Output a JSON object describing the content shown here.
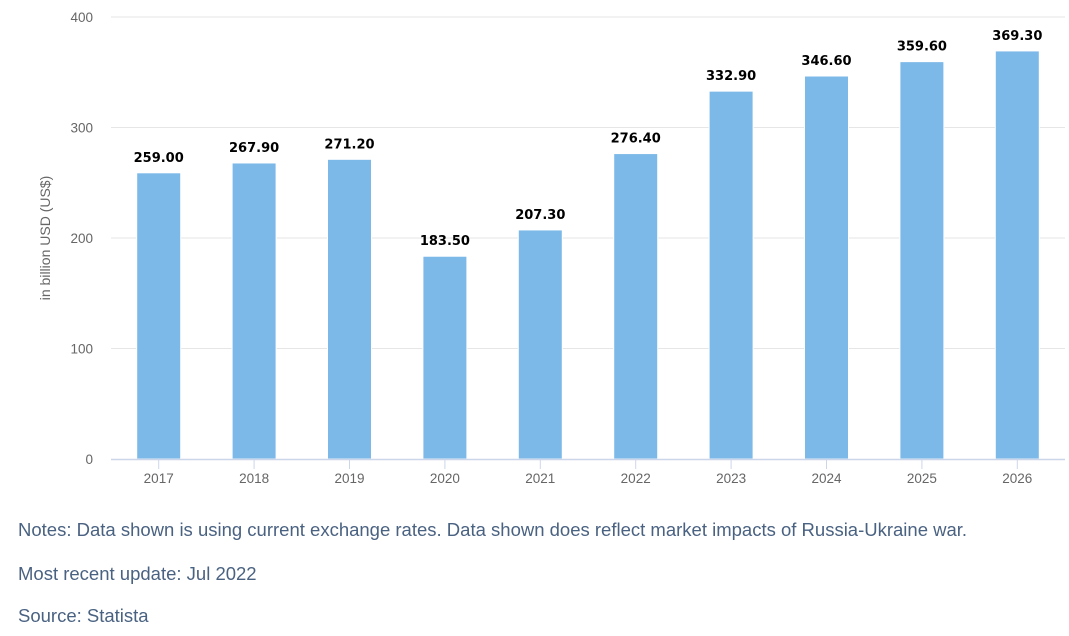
{
  "chart_data": {
    "type": "bar",
    "title": "",
    "xlabel": "",
    "ylabel": "in billion USD (US$)",
    "categories": [
      "2017",
      "2018",
      "2019",
      "2020",
      "2021",
      "2022",
      "2023",
      "2024",
      "2025",
      "2026"
    ],
    "values": [
      259.0,
      267.9,
      271.2,
      183.5,
      207.3,
      276.4,
      332.9,
      346.6,
      359.6,
      369.3
    ],
    "value_labels": [
      "259.00",
      "267.90",
      "271.20",
      "183.50",
      "207.30",
      "276.40",
      "332.90",
      "346.60",
      "359.60",
      "369.30"
    ],
    "ylim": [
      0,
      400
    ],
    "yticks": [
      0,
      100,
      200,
      300,
      400
    ],
    "grid": true,
    "legend": null,
    "bar_color": "#7cb9e8"
  },
  "footer": {
    "notes": "Notes: Data shown is using current exchange rates. Data shown does reflect market impacts of Russia-Ukraine war.",
    "update": "Most recent update: Jul 2022",
    "source": "Source: Statista"
  },
  "colors": {
    "grid": "#e6e6e6",
    "axis": "#ccd6eb",
    "tick_text": "#666666",
    "label_text": "#000000",
    "notes_text": "#4a6282"
  }
}
